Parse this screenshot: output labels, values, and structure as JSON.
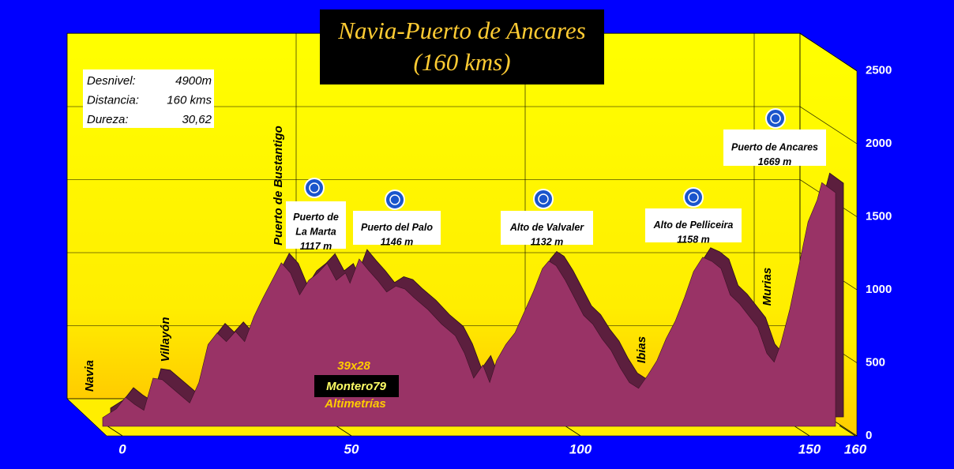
{
  "chart_data": {
    "type": "area",
    "title": [
      "Navia-Puerto de Ancares",
      "(160 kms)"
    ],
    "info": [
      {
        "label": "Desnivel:",
        "value": "4900m"
      },
      {
        "label": "Distancia:",
        "value": "160 kms"
      },
      {
        "label": "Dureza:",
        "value": "30,62"
      }
    ],
    "places": [
      "Navia",
      "Villayón",
      "Puerto de Bustantigo",
      "Ibias",
      "Murias"
    ],
    "passes": [
      {
        "lines": [
          "Puerto de",
          "La Marta"
        ],
        "elevation": "1117 m"
      },
      {
        "lines": [
          "Puerto del Palo"
        ],
        "elevation": "1146 m"
      },
      {
        "lines": [
          "Alto de Valvaler"
        ],
        "elevation": "1132 m"
      },
      {
        "lines": [
          "Alto de Pelliceira"
        ],
        "elevation": "1158 m"
      },
      {
        "lines": [
          "Puerto de Ancares"
        ],
        "elevation": "1669 m"
      }
    ],
    "credits": [
      "39x28",
      "Montero79",
      "Altimetrías"
    ],
    "x": [
      0,
      3,
      5,
      7,
      9,
      11,
      13,
      16,
      19,
      21,
      23,
      25,
      27,
      29,
      31,
      33,
      35,
      37,
      39,
      41,
      43,
      45,
      47,
      49,
      51,
      53,
      54,
      56,
      58,
      60,
      62,
      64,
      66,
      68,
      71,
      74,
      77,
      79,
      81,
      83,
      84.5,
      86,
      88,
      90,
      92,
      94,
      96,
      97.4,
      99,
      101,
      103,
      105,
      107,
      109,
      111,
      113,
      115,
      117,
      119,
      121,
      123,
      125,
      127,
      129,
      131,
      133,
      135,
      137,
      139,
      141,
      143,
      145,
      146.6,
      148,
      150,
      152,
      154,
      156,
      157,
      160
    ],
    "values": [
      60,
      120,
      200,
      150,
      110,
      330,
      320,
      240,
      160,
      300,
      560,
      640,
      580,
      650,
      580,
      750,
      880,
      1000,
      1120,
      1050,
      900,
      1000,
      1050,
      1117,
      1000,
      1050,
      980,
      1146,
      1070,
      1000,
      920,
      960,
      940,
      880,
      800,
      700,
      620,
      500,
      330,
      420,
      300,
      450,
      560,
      640,
      780,
      920,
      1080,
      1132,
      1100,
      1000,
      880,
      760,
      700,
      600,
      520,
      400,
      300,
      260,
      350,
      450,
      600,
      720,
      880,
      1060,
      1158,
      1130,
      1080,
      900,
      840,
      760,
      680,
      500,
      440,
      560,
      800,
      1100,
      1400,
      1550,
      1669,
      1600
    ],
    "color": "#993366",
    "xlim": [
      0,
      160
    ],
    "xticks": [
      0,
      50,
      100,
      150,
      160
    ],
    "ylim": [
      0,
      2500
    ],
    "yticks": [
      0,
      500,
      1000,
      1500,
      2000,
      2500
    ],
    "grid": true
  }
}
